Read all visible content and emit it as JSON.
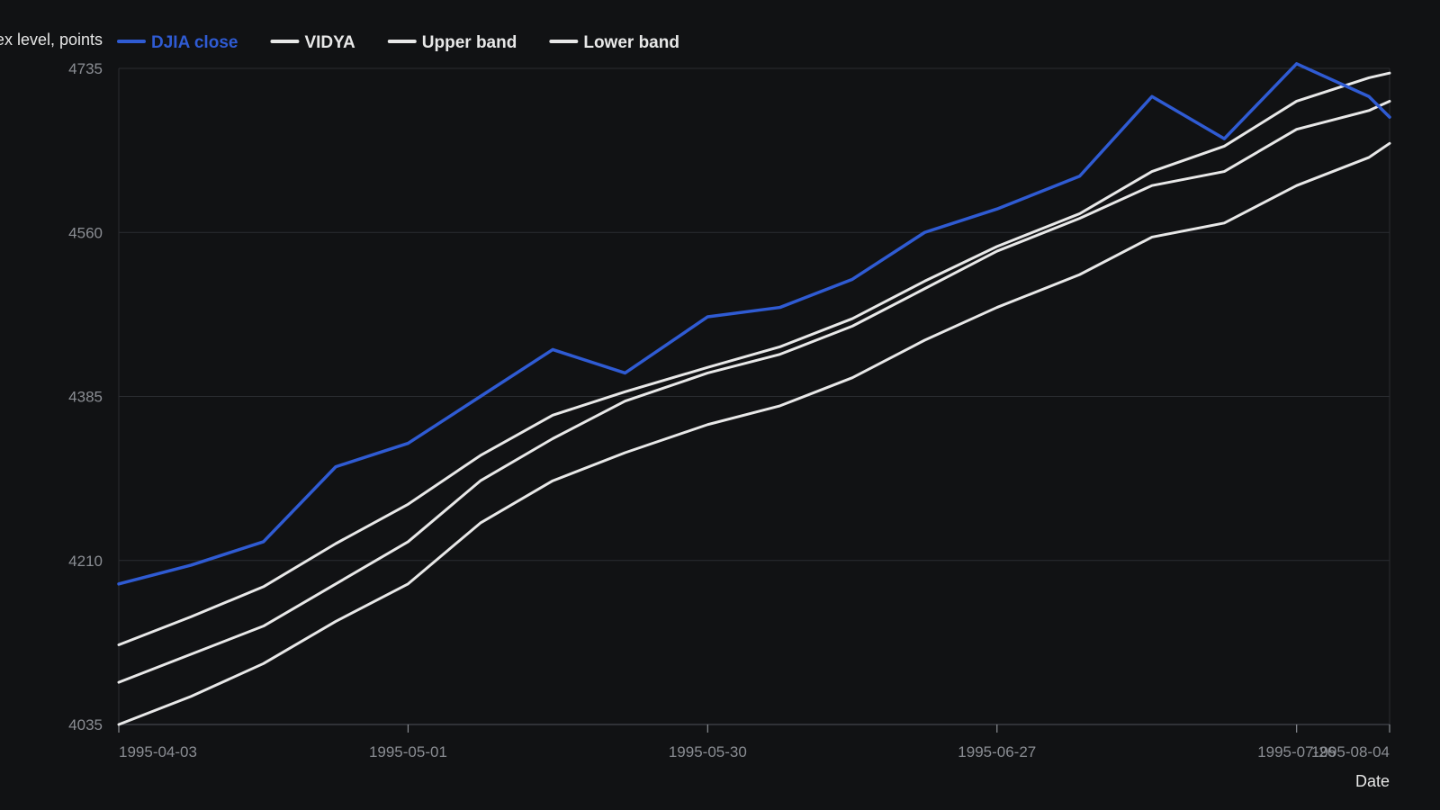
{
  "chart_data": {
    "type": "line",
    "title": "",
    "xlabel": "Date",
    "ylabel": "Index level, points",
    "ylim": [
      4035,
      4735
    ],
    "yticks": [
      4035,
      4210,
      4385,
      4560,
      4735
    ],
    "xlim": [
      "1995-04-03",
      "1995-08-04"
    ],
    "xticks": [
      "1995-04-03",
      "1995-05-01",
      "1995-05-30",
      "1995-06-27",
      "1995-07-26",
      "1995-08-04"
    ],
    "grid": true,
    "legend_position": "top-left",
    "x": [
      "1995-04-03",
      "1995-04-10",
      "1995-04-17",
      "1995-04-24",
      "1995-05-01",
      "1995-05-08",
      "1995-05-15",
      "1995-05-22",
      "1995-05-30",
      "1995-06-06",
      "1995-06-13",
      "1995-06-20",
      "1995-06-27",
      "1995-07-05",
      "1995-07-12",
      "1995-07-19",
      "1995-07-26",
      "1995-08-02",
      "1995-08-04"
    ],
    "series": [
      {
        "name": "DJIA close",
        "color": "#2f5bd3",
        "values": [
          4185,
          4205,
          4230,
          4310,
          4335,
          4385,
          4435,
          4410,
          4470,
          4480,
          4510,
          4560,
          4585,
          4620,
          4705,
          4660,
          4740,
          4705,
          4683
        ]
      },
      {
        "name": "VIDYA",
        "color": "#e8e8e8",
        "values": [
          4120,
          4150,
          4182,
          4228,
          4270,
          4322,
          4365,
          4390,
          4416,
          4438,
          4468,
          4508,
          4545,
          4580,
          4625,
          4652,
          4700,
          4725,
          4730
        ]
      },
      {
        "name": "Upper band",
        "color": "#e8e8e8",
        "values": [
          4080,
          4110,
          4140,
          4185,
          4230,
          4295,
          4340,
          4380,
          4410,
          4430,
          4460,
          4500,
          4540,
          4575,
          4610,
          4625,
          4670,
          4690,
          4700
        ]
      },
      {
        "name": "Lower band",
        "color": "#e8e8e8",
        "values": [
          4035,
          4065,
          4100,
          4145,
          4185,
          4250,
          4295,
          4325,
          4355,
          4375,
          4405,
          4445,
          4480,
          4515,
          4555,
          4570,
          4610,
          4640,
          4655
        ]
      }
    ]
  }
}
